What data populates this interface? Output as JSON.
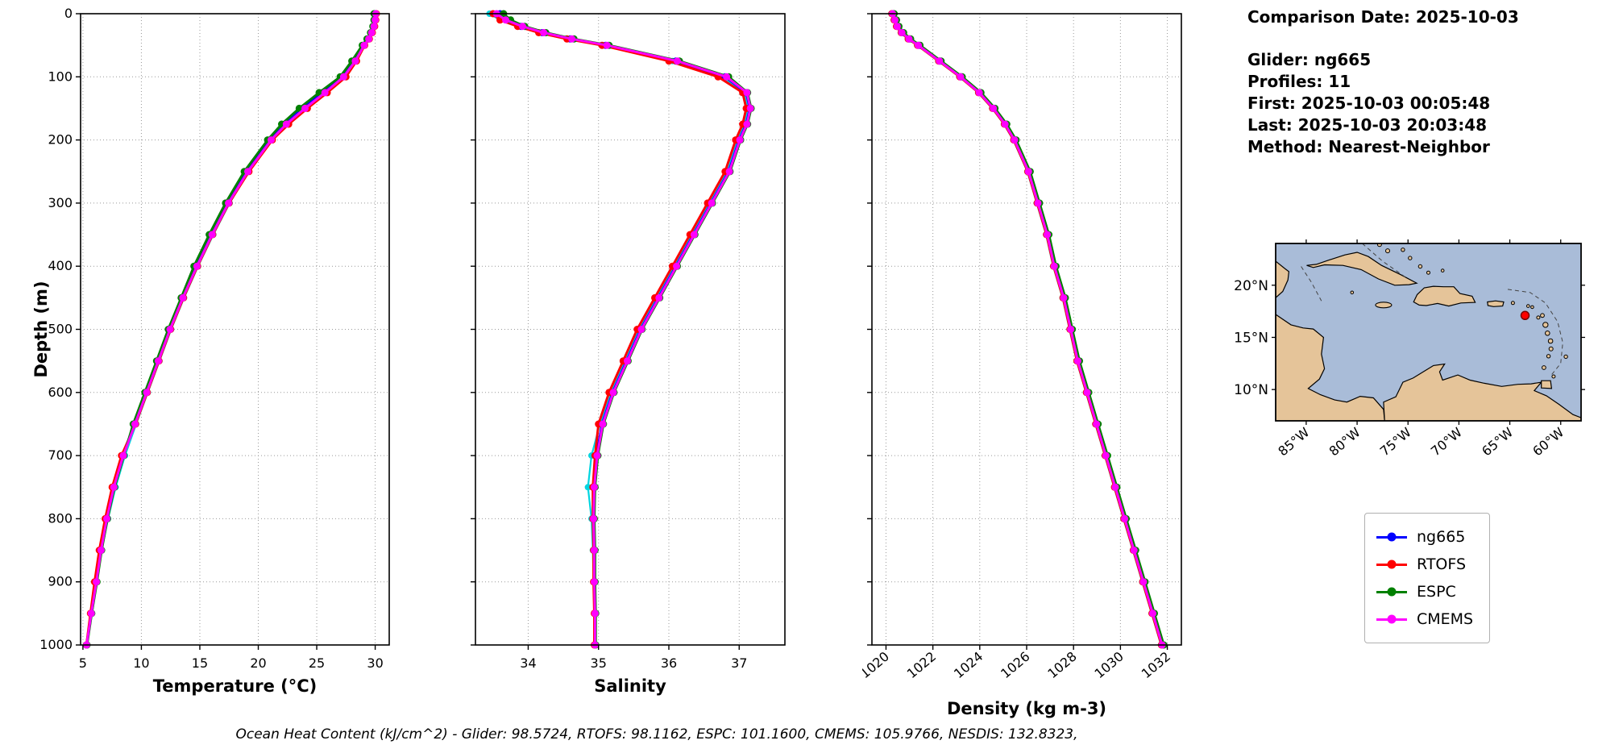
{
  "info_panel": {
    "date_line": "Comparison Date: 2025-10-03",
    "lines": [
      "Glider: ng665",
      "Profiles: 11",
      "First: 2025-10-03 00:05:48",
      "Last: 2025-10-03 20:03:48",
      "Method: Nearest-Neighbor"
    ]
  },
  "footer": {
    "text": "Ocean Heat Content (kJ/cm^2) - Glider: 98.5724,  RTOFS: 98.1162,  ESPC: 101.1600,  CMEMS: 105.9766,  NESDIS: 132.8323,"
  },
  "legend": [
    {
      "label": "ng665",
      "color": "#0000ff"
    },
    {
      "label": "RTOFS",
      "color": "#ff0000"
    },
    {
      "label": "ESPC",
      "color": "#008000"
    },
    {
      "label": "CMEMS",
      "color": "#ff00ff"
    }
  ],
  "map": {
    "extent": {
      "lon_w_max": 88,
      "lon_w_min": 58,
      "lat_max": 24,
      "lat_min": 7
    },
    "xtick_lons": [
      85,
      80,
      75,
      70,
      65,
      60
    ],
    "xtick_labels": [
      "85°W",
      "80°W",
      "75°W",
      "70°W",
      "65°W",
      "60°W"
    ],
    "ytick_lats": [
      20,
      15,
      10
    ],
    "ytick_labels": [
      "20°N",
      "15°N",
      "10°N"
    ],
    "ocean_color": "#a9bcd8",
    "land_color": "#e5c499",
    "marker": {
      "lon_w": 63.5,
      "lat_n": 17.1,
      "color": "#ff0000",
      "edge": "#7a0000"
    }
  },
  "chart_data": [
    {
      "type": "line",
      "xlabel": "Temperature (°C)",
      "ylabel": "Depth (m)",
      "xlim": [
        4.8,
        31.2
      ],
      "xticks": [
        5,
        10,
        15,
        20,
        25,
        30
      ],
      "ylim": [
        0,
        1000
      ],
      "yticks": [
        0,
        100,
        200,
        300,
        400,
        500,
        600,
        700,
        800,
        900,
        1000
      ],
      "rotate_xticks": false,
      "show_ylabels": true,
      "depths": [
        0,
        10,
        20,
        30,
        40,
        50,
        75,
        100,
        125,
        150,
        175,
        200,
        250,
        300,
        350,
        400,
        450,
        500,
        550,
        600,
        650,
        700,
        750,
        800,
        850,
        900,
        950,
        1000
      ],
      "series": [
        {
          "name": "ng665-raw",
          "color": "#00d5e0",
          "values": [
            30.05,
            30.02,
            29.95,
            29.75,
            29.5,
            29.1,
            28.35,
            27.35,
            25.7,
            24.0,
            22.5,
            21.15,
            19.15,
            17.55,
            16.15,
            14.85,
            13.65,
            12.55,
            11.55,
            10.55,
            9.55,
            8.6,
            7.8,
            7.15,
            6.6,
            6.2,
            5.78,
            5.35
          ]
        },
        {
          "name": "ng665",
          "color": "#0000ff",
          "values": [
            30.0,
            30.0,
            29.9,
            29.7,
            29.4,
            29.0,
            28.2,
            27.2,
            25.5,
            23.8,
            22.3,
            21.0,
            19.0,
            17.4,
            16.0,
            14.7,
            13.5,
            12.4,
            11.4,
            10.4,
            9.4,
            8.4,
            7.6,
            7.0,
            6.5,
            6.1,
            5.7,
            5.3
          ]
        },
        {
          "name": "RTOFS",
          "color": "#ff0000",
          "values": [
            30.1,
            30.05,
            29.95,
            29.75,
            29.5,
            29.1,
            28.4,
            27.5,
            25.9,
            24.2,
            22.6,
            21.2,
            19.2,
            17.5,
            16.1,
            14.8,
            13.6,
            12.5,
            11.5,
            10.5,
            9.5,
            8.3,
            7.5,
            6.9,
            6.4,
            6.0,
            5.65,
            5.3
          ]
        },
        {
          "name": "ESPC",
          "color": "#008000",
          "values": [
            29.9,
            29.9,
            29.8,
            29.6,
            29.3,
            28.9,
            28.0,
            27.0,
            25.2,
            23.5,
            22.0,
            20.8,
            18.8,
            17.2,
            15.8,
            14.5,
            13.4,
            12.3,
            11.3,
            10.3,
            9.3,
            8.5,
            7.7,
            7.1,
            6.6,
            6.2,
            5.75,
            5.35
          ]
        },
        {
          "name": "CMEMS",
          "color": "#ff00ff",
          "values": [
            30.05,
            30.0,
            29.9,
            29.7,
            29.45,
            29.05,
            28.3,
            27.3,
            25.7,
            24.0,
            22.4,
            21.1,
            19.1,
            17.45,
            16.05,
            14.75,
            13.55,
            12.45,
            11.45,
            10.45,
            9.45,
            8.45,
            7.65,
            7.05,
            6.55,
            6.15,
            5.72,
            5.32
          ]
        }
      ]
    },
    {
      "type": "line",
      "xlabel": "Salinity",
      "ylabel": "",
      "xlim": [
        33.25,
        37.65
      ],
      "xticks": [
        34,
        35,
        36,
        37
      ],
      "ylim": [
        0,
        1000
      ],
      "yticks": [
        0,
        100,
        200,
        300,
        400,
        500,
        600,
        700,
        800,
        900,
        1000
      ],
      "rotate_xticks": false,
      "show_ylabels": false,
      "depths": [
        0,
        10,
        20,
        30,
        40,
        50,
        75,
        100,
        125,
        150,
        175,
        200,
        250,
        300,
        350,
        400,
        450,
        500,
        550,
        600,
        650,
        700,
        750,
        800,
        850,
        900,
        950,
        1000
      ],
      "series": [
        {
          "name": "ng665-raw",
          "color": "#00d5e0",
          "values": [
            33.45,
            33.6,
            33.85,
            34.15,
            34.55,
            35.05,
            36.05,
            36.75,
            37.07,
            37.12,
            37.07,
            36.97,
            36.82,
            36.57,
            36.32,
            36.07,
            35.82,
            35.57,
            35.37,
            35.17,
            35.02,
            34.9,
            34.85,
            34.9,
            34.92,
            34.93,
            34.94,
            34.94
          ]
        },
        {
          "name": "ng665",
          "color": "#0000ff",
          "values": [
            33.6,
            33.7,
            33.9,
            34.2,
            34.6,
            35.1,
            36.1,
            36.8,
            37.1,
            37.15,
            37.1,
            37.0,
            36.85,
            36.6,
            36.35,
            36.1,
            35.85,
            35.6,
            35.4,
            35.2,
            35.05,
            34.97,
            34.93,
            34.93,
            34.94,
            34.94,
            34.95,
            34.95
          ]
        },
        {
          "name": "RTOFS",
          "color": "#ff0000",
          "values": [
            33.5,
            33.6,
            33.85,
            34.15,
            34.55,
            35.05,
            36.0,
            36.7,
            37.05,
            37.1,
            37.05,
            36.95,
            36.8,
            36.55,
            36.3,
            36.05,
            35.8,
            35.55,
            35.35,
            35.15,
            35.0,
            34.95,
            34.92,
            34.92,
            34.93,
            34.93,
            34.94,
            34.94
          ]
        },
        {
          "name": "ESPC",
          "color": "#008000",
          "values": [
            33.65,
            33.75,
            33.95,
            34.25,
            34.65,
            35.15,
            36.15,
            36.85,
            37.12,
            37.17,
            37.12,
            37.02,
            36.87,
            36.62,
            36.37,
            36.12,
            35.87,
            35.62,
            35.42,
            35.22,
            35.07,
            34.99,
            34.95,
            34.94,
            34.95,
            34.95,
            34.96,
            34.96
          ]
        },
        {
          "name": "CMEMS",
          "color": "#ff00ff",
          "values": [
            33.55,
            33.68,
            33.92,
            34.22,
            34.62,
            35.12,
            36.12,
            36.82,
            37.11,
            37.16,
            37.11,
            37.01,
            36.86,
            36.61,
            36.36,
            36.11,
            35.86,
            35.61,
            35.41,
            35.21,
            35.06,
            34.98,
            34.94,
            34.93,
            34.94,
            34.94,
            34.95,
            34.95
          ]
        }
      ]
    },
    {
      "type": "line",
      "xlabel": "Density (kg m-3)",
      "ylabel": "",
      "xlim": [
        1019.4,
        1032.6
      ],
      "xticks": [
        1020,
        1022,
        1024,
        1026,
        1028,
        1030,
        1032
      ],
      "ylim": [
        0,
        1000
      ],
      "yticks": [
        0,
        100,
        200,
        300,
        400,
        500,
        600,
        700,
        800,
        900,
        1000
      ],
      "rotate_xticks": true,
      "show_ylabels": false,
      "depths": [
        0,
        10,
        20,
        30,
        40,
        50,
        75,
        100,
        125,
        150,
        175,
        200,
        250,
        300,
        350,
        400,
        450,
        500,
        550,
        600,
        650,
        700,
        750,
        800,
        850,
        900,
        950,
        1000
      ],
      "series": [
        {
          "name": "ng665-raw",
          "color": "#00d5e0",
          "values": [
            1020.23,
            1020.33,
            1020.43,
            1020.63,
            1020.93,
            1021.33,
            1022.23,
            1023.13,
            1023.93,
            1024.53,
            1025.03,
            1025.43,
            1026.03,
            1026.43,
            1026.83,
            1027.13,
            1027.53,
            1027.83,
            1028.13,
            1028.53,
            1028.93,
            1029.33,
            1029.73,
            1030.13,
            1030.53,
            1030.93,
            1031.33,
            1031.73
          ]
        },
        {
          "name": "ng665",
          "color": "#0000ff",
          "values": [
            1020.3,
            1020.4,
            1020.5,
            1020.7,
            1021.0,
            1021.4,
            1022.3,
            1023.2,
            1024.0,
            1024.6,
            1025.1,
            1025.5,
            1026.1,
            1026.5,
            1026.9,
            1027.2,
            1027.6,
            1027.9,
            1028.2,
            1028.6,
            1029.0,
            1029.4,
            1029.8,
            1030.2,
            1030.6,
            1031.0,
            1031.4,
            1031.8
          ]
        },
        {
          "name": "RTOFS",
          "color": "#ff0000",
          "values": [
            1020.25,
            1020.35,
            1020.45,
            1020.65,
            1020.95,
            1021.35,
            1022.25,
            1023.15,
            1023.95,
            1024.55,
            1025.05,
            1025.45,
            1026.05,
            1026.45,
            1026.85,
            1027.15,
            1027.55,
            1027.85,
            1028.15,
            1028.55,
            1028.95,
            1029.35,
            1029.75,
            1030.15,
            1030.55,
            1030.95,
            1031.35,
            1031.75
          ]
        },
        {
          "name": "ESPC",
          "color": "#008000",
          "values": [
            1020.35,
            1020.45,
            1020.55,
            1020.75,
            1021.05,
            1021.45,
            1022.35,
            1023.25,
            1024.05,
            1024.65,
            1025.15,
            1025.55,
            1026.15,
            1026.55,
            1026.95,
            1027.25,
            1027.65,
            1027.95,
            1028.25,
            1028.65,
            1029.05,
            1029.45,
            1029.85,
            1030.25,
            1030.65,
            1031.05,
            1031.45,
            1031.85
          ]
        },
        {
          "name": "CMEMS",
          "color": "#ff00ff",
          "values": [
            1020.28,
            1020.38,
            1020.48,
            1020.68,
            1020.98,
            1021.38,
            1022.28,
            1023.18,
            1023.98,
            1024.58,
            1025.08,
            1025.48,
            1026.08,
            1026.48,
            1026.88,
            1027.18,
            1027.58,
            1027.88,
            1028.18,
            1028.58,
            1028.98,
            1029.38,
            1029.78,
            1030.18,
            1030.58,
            1030.98,
            1031.38,
            1031.78
          ]
        }
      ]
    }
  ]
}
